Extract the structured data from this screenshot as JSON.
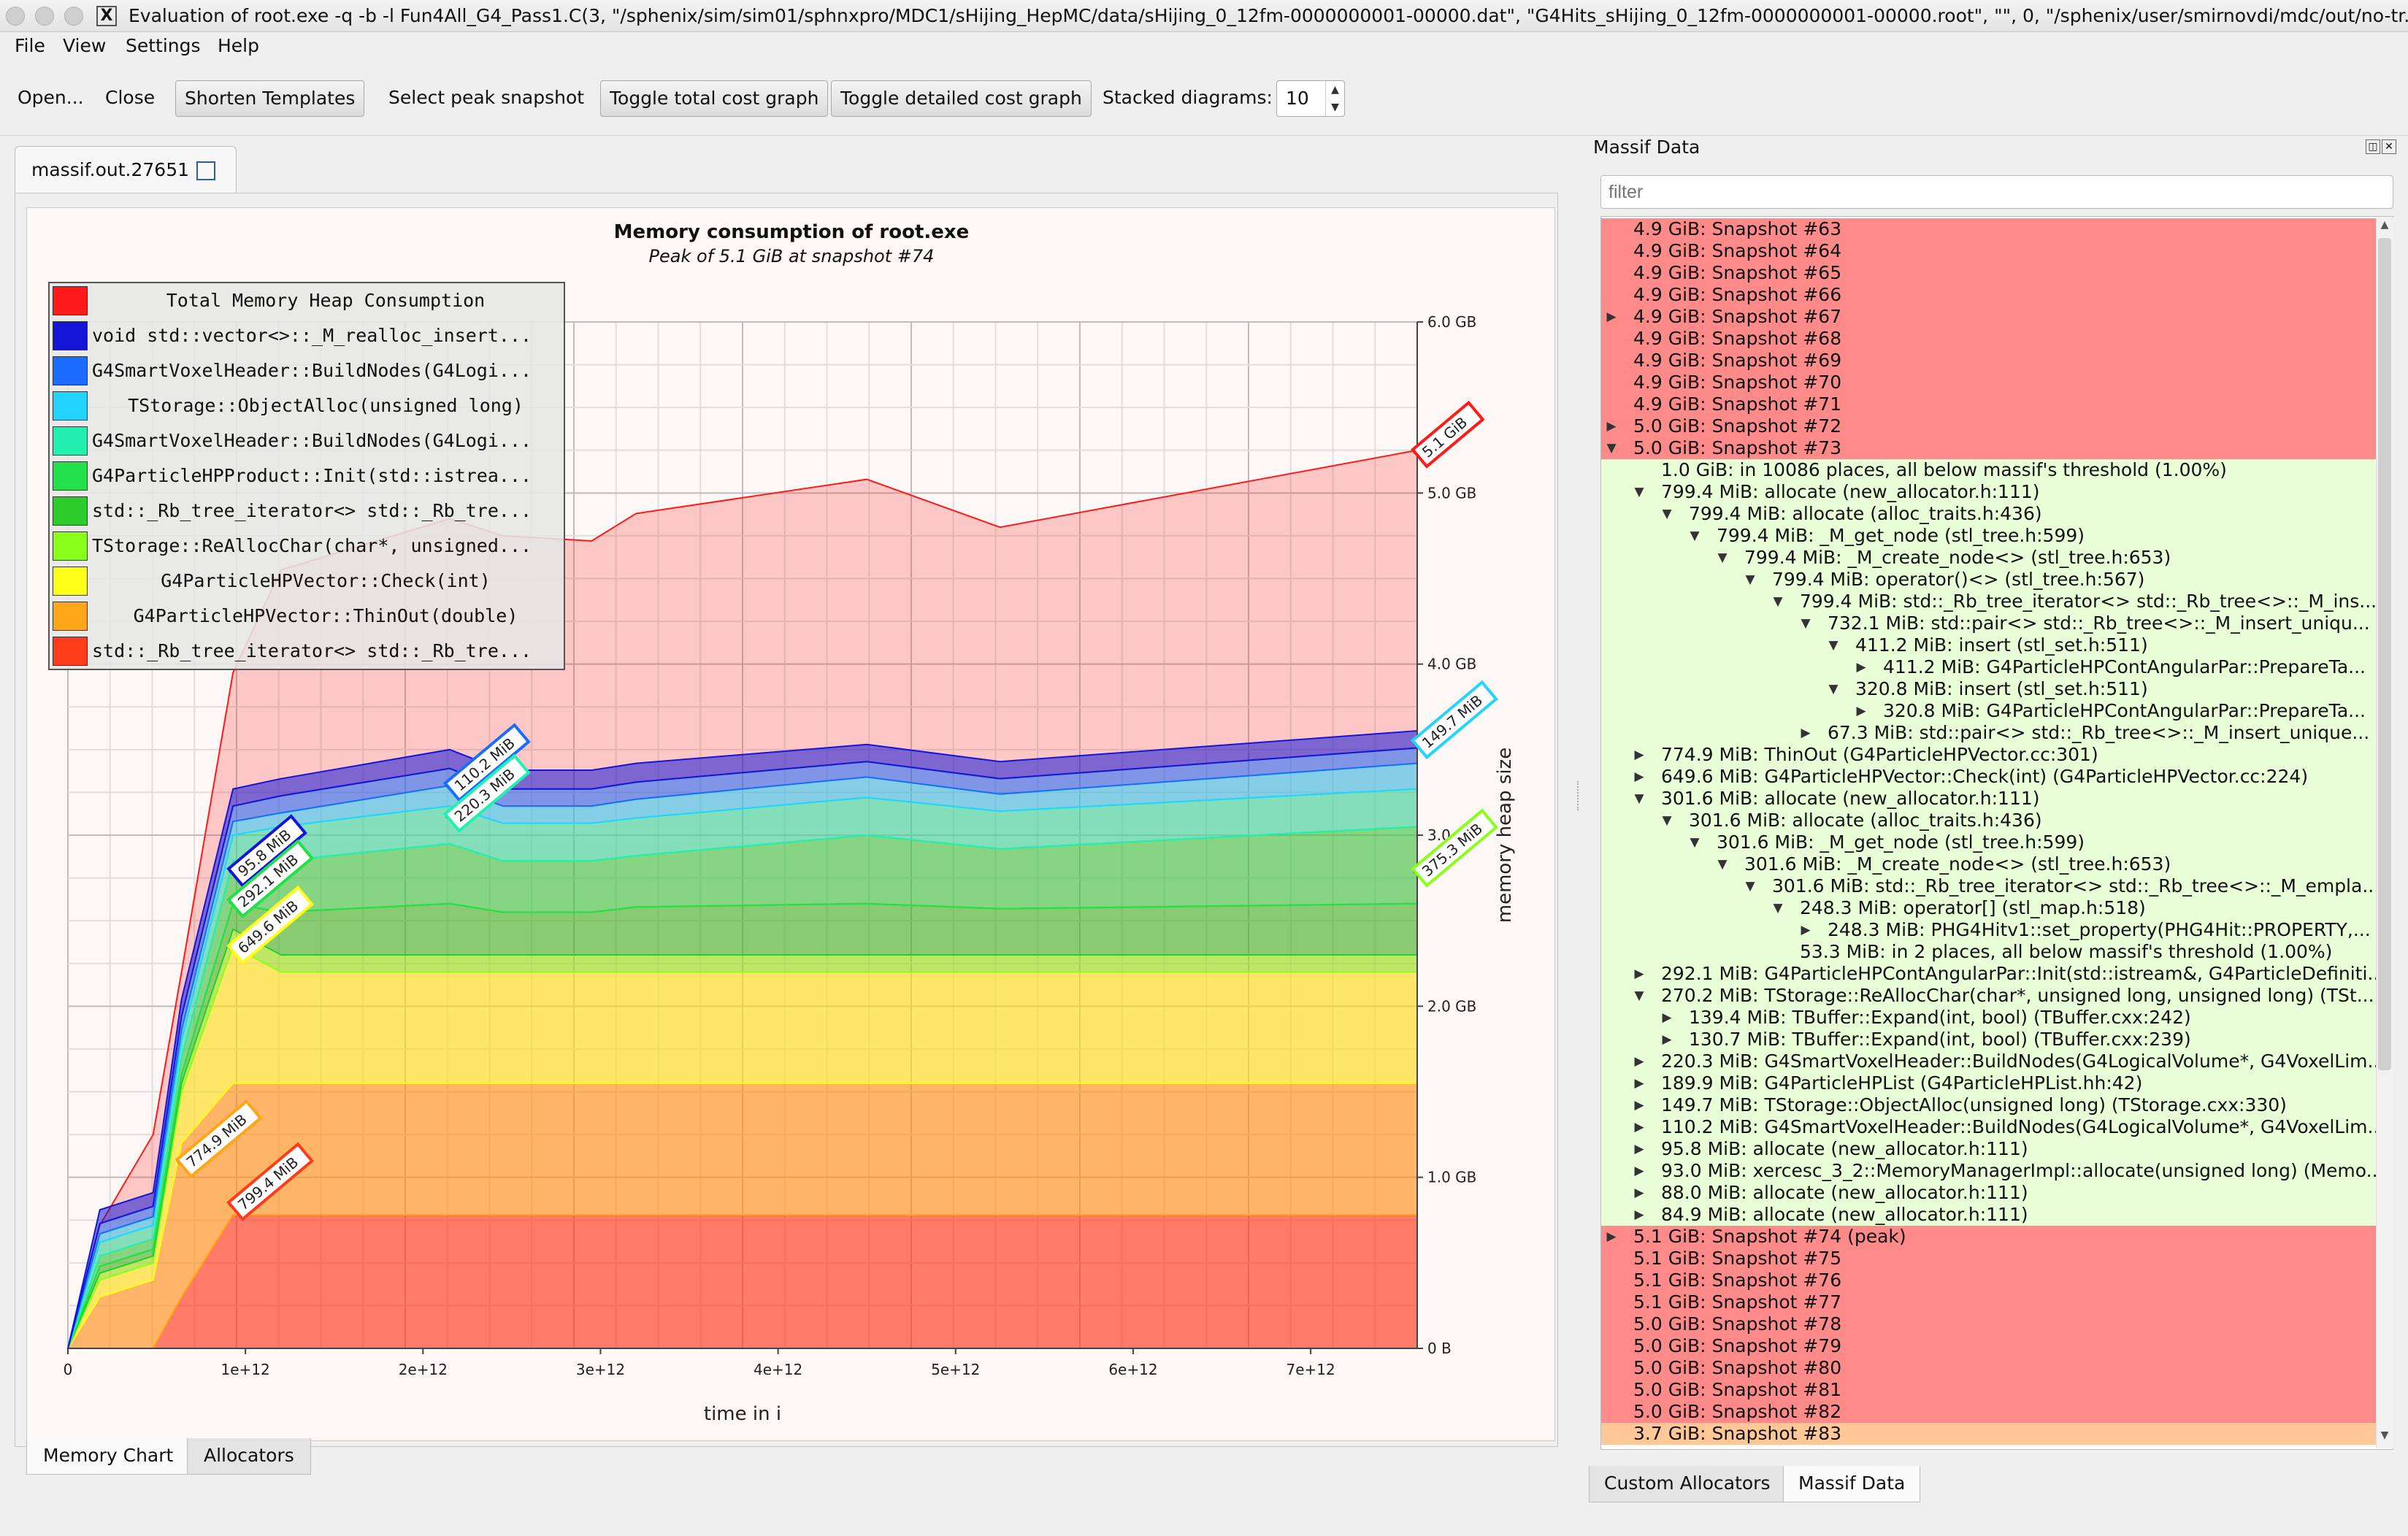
{
  "window": {
    "title": "Evaluation of root.exe -q -b -l Fun4All_G4_Pass1.C(3, \"/sphenix/sim/sim01/sphnxpro/MDC1/sHijing_HepMC/data/sHijing_0_12fm-0000000001-00000.dat\", \"G4Hits_sHijing_0_12fm-0000000001-00000.root\", \"\", 0, \"/sphenix/user/smirnovdi/mdc/out/no-tr...",
    "app_icon": "X"
  },
  "menu": [
    "File",
    "View",
    "Settings",
    "Help"
  ],
  "toolbar": {
    "open": "Open...",
    "close": "Close",
    "shorten": "Shorten Templates",
    "peak": "Select peak snapshot",
    "toggle_total": "Toggle total cost graph",
    "toggle_detailed": "Toggle detailed cost graph",
    "stacked_label": "Stacked diagrams:",
    "stacked_value": "10"
  },
  "file_tab": "massif.out.27651",
  "bottom_tabs": [
    "Memory Chart",
    "Allocators"
  ],
  "chart_data": {
    "type": "area",
    "title": "Memory consumption of root.exe",
    "subtitle": "Peak of 5.1 GiB at snapshot #74",
    "xlabel": "time in i",
    "ylabel": "memory heap size",
    "x_ticks": [
      "0",
      "1e+12",
      "2e+12",
      "3e+12",
      "4e+12",
      "5e+12",
      "6e+12",
      "7e+12"
    ],
    "x_tick_values": [
      0,
      1000000000000.0,
      2000000000000.0,
      3000000000000.0,
      4000000000000.0,
      5000000000000.0,
      6000000000000.0,
      7000000000000.0
    ],
    "y_ticks": [
      "0 B",
      "1.0 GB",
      "2.0 GB",
      "3.0 GB",
      "4.0 GB",
      "5.0 GB",
      "6.0 GB"
    ],
    "y_tick_values": [
      0,
      1,
      2,
      3,
      4,
      5,
      6
    ],
    "xlim": [
      0,
      7600000000000.0
    ],
    "ylim": [
      0,
      6
    ],
    "grid": true,
    "legend_position": "top-left",
    "x": [
      0,
      180000000000.0,
      480000000000.0,
      640000000000.0,
      930000000000.0,
      1200000000000.0,
      2150000000000.0,
      2450000000000.0,
      2950000000000.0,
      3200000000000.0,
      4500000000000.0,
      5250000000000.0,
      7600000000000.0
    ],
    "series": [
      {
        "name": "Total Memory Heap Consumption",
        "color": "#ff1a1a",
        "values": [
          0,
          0.72,
          1.25,
          2.2,
          3.95,
          4.55,
          4.85,
          4.75,
          4.72,
          4.88,
          5.08,
          4.8,
          5.25
        ]
      },
      {
        "name": "void std::vector<>::_M_realloc_insert...",
        "color": "#1515d8",
        "values": [
          0,
          0.08,
          0.08,
          0.1,
          0.1,
          0.1,
          0.11,
          0.11,
          0.11,
          0.11,
          0.1,
          0.1,
          0.1
        ]
      },
      {
        "name": "G4SmartVoxelHeader::BuildNodes(G4Logi...",
        "color": "#1a6cff",
        "values": [
          0,
          0.06,
          0.06,
          0.08,
          0.09,
          0.1,
          0.1,
          0.1,
          0.1,
          0.1,
          0.09,
          0.09,
          0.09
        ]
      },
      {
        "name": "TStorage::ObjectAlloc(unsigned long)",
        "color": "#22d4ff",
        "values": [
          0,
          0.05,
          0.05,
          0.06,
          0.08,
          0.08,
          0.12,
          0.1,
          0.1,
          0.11,
          0.12,
          0.1,
          0.15
        ]
      },
      {
        "name": "G4SmartVoxelHeader::BuildNodes(G4Logi...",
        "color": "#22f0b0",
        "values": [
          0,
          0.08,
          0.08,
          0.1,
          0.15,
          0.2,
          0.22,
          0.22,
          0.22,
          0.22,
          0.22,
          0.22,
          0.22
        ]
      },
      {
        "name": "G4ParticleHPProduct::Init(std::istrea...",
        "color": "#22e04a",
        "values": [
          0,
          0.06,
          0.06,
          0.1,
          0.25,
          0.3,
          0.35,
          0.3,
          0.3,
          0.3,
          0.4,
          0.35,
          0.45
        ]
      },
      {
        "name": "std::_Rb_tree_iterator<> std::_Rb_tre...",
        "color": "#2acd2a",
        "values": [
          0,
          0.04,
          0.04,
          0.05,
          0.15,
          0.25,
          0.3,
          0.25,
          0.25,
          0.28,
          0.3,
          0.27,
          0.3
        ]
      },
      {
        "name": "TStorage::ReAllocChar(char*, unsigned...",
        "color": "#8aff1a",
        "values": [
          0,
          0.04,
          0.04,
          0.05,
          0.1,
          0.1,
          0.1,
          0.1,
          0.1,
          0.1,
          0.1,
          0.1,
          0.1
        ]
      },
      {
        "name": "G4ParticleHPVector::Check(int)",
        "color": "#ffff1a",
        "values": [
          0,
          0.1,
          0.1,
          0.3,
          0.8,
          0.65,
          0.65,
          0.65,
          0.65,
          0.65,
          0.65,
          0.65,
          0.65
        ]
      },
      {
        "name": "G4ParticleHPVector::ThinOut(double)",
        "color": "#ffa51a",
        "values": [
          0,
          0.3,
          0.4,
          0.9,
          0.77,
          0.77,
          0.77,
          0.77,
          0.77,
          0.77,
          0.77,
          0.77,
          0.77
        ]
      },
      {
        "name": "std::_Rb_tree_iterator<> std::_Rb_tre...",
        "color": "#ff3c1a",
        "values": [
          0,
          0,
          0,
          0.3,
          0.78,
          0.78,
          0.78,
          0.78,
          0.78,
          0.78,
          0.78,
          0.78,
          0.78
        ]
      }
    ],
    "annotations": [
      {
        "text": "5.1 GiB",
        "x": 7600000000000.0,
        "y": 5.25,
        "color": "#ff1a1a"
      },
      {
        "text": "149.7 MiB",
        "x": 7600000000000.0,
        "y": 3.55,
        "color": "#22d4ff"
      },
      {
        "text": "375.3 MiB",
        "x": 7600000000000.0,
        "y": 2.8,
        "color": "#8aff1a"
      },
      {
        "text": "110.2 MiB",
        "x": 2150000000000.0,
        "y": 3.3,
        "color": "#1a6cff"
      },
      {
        "text": "220.3 MiB",
        "x": 2150000000000.0,
        "y": 3.12,
        "color": "#22f0b0"
      },
      {
        "text": "95.8 MiB",
        "x": 930000000000.0,
        "y": 2.8,
        "color": "#1515d8"
      },
      {
        "text": "292.1 MiB",
        "x": 930000000000.0,
        "y": 2.62,
        "color": "#22e04a"
      },
      {
        "text": "649.6 MiB",
        "x": 930000000000.0,
        "y": 2.35,
        "color": "#ffff1a"
      },
      {
        "text": "774.9 MiB",
        "x": 640000000000.0,
        "y": 1.1,
        "color": "#ffa51a"
      },
      {
        "text": "799.4 MiB",
        "x": 930000000000.0,
        "y": 0.85,
        "color": "#ff3c1a"
      }
    ]
  },
  "right_panel": {
    "title": "Massif Data",
    "filter_placeholder": "filter",
    "tabs": [
      "Custom Allocators",
      "Massif Data"
    ],
    "rows": [
      {
        "text": "4.9 GiB: Snapshot #63",
        "depth": 0,
        "arrow": "",
        "bg": "#ff8a8a"
      },
      {
        "text": "4.9 GiB: Snapshot #64",
        "depth": 0,
        "arrow": "",
        "bg": "#ff8a8a"
      },
      {
        "text": "4.9 GiB: Snapshot #65",
        "depth": 0,
        "arrow": "",
        "bg": "#ff8a8a"
      },
      {
        "text": "4.9 GiB: Snapshot #66",
        "depth": 0,
        "arrow": "",
        "bg": "#ff8a8a"
      },
      {
        "text": "4.9 GiB: Snapshot #67",
        "depth": 0,
        "arrow": "▶",
        "bg": "#ff8a8a"
      },
      {
        "text": "4.9 GiB: Snapshot #68",
        "depth": 0,
        "arrow": "",
        "bg": "#ff8a8a"
      },
      {
        "text": "4.9 GiB: Snapshot #69",
        "depth": 0,
        "arrow": "",
        "bg": "#ff8a8a"
      },
      {
        "text": "4.9 GiB: Snapshot #70",
        "depth": 0,
        "arrow": "",
        "bg": "#ff8a8a"
      },
      {
        "text": "4.9 GiB: Snapshot #71",
        "depth": 0,
        "arrow": "",
        "bg": "#ff8a8a"
      },
      {
        "text": "5.0 GiB: Snapshot #72",
        "depth": 0,
        "arrow": "▶",
        "bg": "#ff8a8a"
      },
      {
        "text": "5.0 GiB: Snapshot #73",
        "depth": 0,
        "arrow": "▼",
        "bg": "#ff8a8a"
      },
      {
        "text": "1.0 GiB: in 10086 places, all below massif's threshold (1.00%)",
        "depth": 1,
        "arrow": "",
        "bg": "#e8ffd8"
      },
      {
        "text": "799.4 MiB: allocate (new_allocator.h:111)",
        "depth": 1,
        "arrow": "▼",
        "bg": "#e8ffd8"
      },
      {
        "text": "799.4 MiB: allocate (alloc_traits.h:436)",
        "depth": 2,
        "arrow": "▼",
        "bg": "#e8ffd8"
      },
      {
        "text": "799.4 MiB: _M_get_node (stl_tree.h:599)",
        "depth": 3,
        "arrow": "▼",
        "bg": "#e8ffd8"
      },
      {
        "text": "799.4 MiB: _M_create_node<> (stl_tree.h:653)",
        "depth": 4,
        "arrow": "▼",
        "bg": "#e8ffd8"
      },
      {
        "text": "799.4 MiB: operator()<> (stl_tree.h:567)",
        "depth": 5,
        "arrow": "▼",
        "bg": "#e8ffd8"
      },
      {
        "text": "799.4 MiB: std::_Rb_tree_iterator<> std::_Rb_tree<>::_M_ins...",
        "depth": 6,
        "arrow": "▼",
        "bg": "#e8ffd8"
      },
      {
        "text": "732.1 MiB: std::pair<> std::_Rb_tree<>::_M_insert_uniqu...",
        "depth": 7,
        "arrow": "▼",
        "bg": "#e8ffd8"
      },
      {
        "text": "411.2 MiB: insert (stl_set.h:511)",
        "depth": 8,
        "arrow": "▼",
        "bg": "#e8ffd8"
      },
      {
        "text": "411.2 MiB: G4ParticleHPContAngularPar::PrepareTa...",
        "depth": 9,
        "arrow": "▶",
        "bg": "#e8ffd8"
      },
      {
        "text": "320.8 MiB: insert (stl_set.h:511)",
        "depth": 8,
        "arrow": "▼",
        "bg": "#e8ffd8"
      },
      {
        "text": "320.8 MiB: G4ParticleHPContAngularPar::PrepareTa...",
        "depth": 9,
        "arrow": "▶",
        "bg": "#e8ffd8"
      },
      {
        "text": "67.3 MiB: std::pair<> std::_Rb_tree<>::_M_insert_unique...",
        "depth": 7,
        "arrow": "▶",
        "bg": "#e8ffd8"
      },
      {
        "text": "774.9 MiB: ThinOut (G4ParticleHPVector.cc:301)",
        "depth": 1,
        "arrow": "▶",
        "bg": "#e8ffd8"
      },
      {
        "text": "649.6 MiB: G4ParticleHPVector::Check(int) (G4ParticleHPVector.cc:224)",
        "depth": 1,
        "arrow": "▶",
        "bg": "#e8ffd8"
      },
      {
        "text": "301.6 MiB: allocate (new_allocator.h:111)",
        "depth": 1,
        "arrow": "▼",
        "bg": "#e8ffd8"
      },
      {
        "text": "301.6 MiB: allocate (alloc_traits.h:436)",
        "depth": 2,
        "arrow": "▼",
        "bg": "#e8ffd8"
      },
      {
        "text": "301.6 MiB: _M_get_node (stl_tree.h:599)",
        "depth": 3,
        "arrow": "▼",
        "bg": "#e8ffd8"
      },
      {
        "text": "301.6 MiB: _M_create_node<> (stl_tree.h:653)",
        "depth": 4,
        "arrow": "▼",
        "bg": "#e8ffd8"
      },
      {
        "text": "301.6 MiB: std::_Rb_tree_iterator<> std::_Rb_tree<>::_M_empla...",
        "depth": 5,
        "arrow": "▼",
        "bg": "#e8ffd8"
      },
      {
        "text": "248.3 MiB: operator[] (stl_map.h:518)",
        "depth": 6,
        "arrow": "▼",
        "bg": "#e8ffd8"
      },
      {
        "text": "248.3 MiB: PHG4Hitv1::set_property(PHG4Hit::PROPERTY,...",
        "depth": 7,
        "arrow": "▶",
        "bg": "#e8ffd8"
      },
      {
        "text": "53.3 MiB: in 2 places, all below massif's threshold (1.00%)",
        "depth": 6,
        "arrow": "",
        "bg": "#e8ffd8"
      },
      {
        "text": "292.1 MiB: G4ParticleHPContAngularPar::Init(std::istream&, G4ParticleDefiniti...",
        "depth": 1,
        "arrow": "▶",
        "bg": "#e8ffd8"
      },
      {
        "text": "270.2 MiB: TStorage::ReAllocChar(char*, unsigned long, unsigned long) (TSt...",
        "depth": 1,
        "arrow": "▼",
        "bg": "#e8ffd8"
      },
      {
        "text": "139.4 MiB: TBuffer::Expand(int, bool) (TBuffer.cxx:242)",
        "depth": 2,
        "arrow": "▶",
        "bg": "#e8ffd8"
      },
      {
        "text": "130.7 MiB: TBuffer::Expand(int, bool) (TBuffer.cxx:239)",
        "depth": 2,
        "arrow": "▶",
        "bg": "#e8ffd8"
      },
      {
        "text": "220.3 MiB: G4SmartVoxelHeader::BuildNodes(G4LogicalVolume*, G4VoxelLim...",
        "depth": 1,
        "arrow": "▶",
        "bg": "#e8ffd8"
      },
      {
        "text": "189.9 MiB: G4ParticleHPList (G4ParticleHPList.hh:42)",
        "depth": 1,
        "arrow": "▶",
        "bg": "#e8ffd8"
      },
      {
        "text": "149.7 MiB: TStorage::ObjectAlloc(unsigned long) (TStorage.cxx:330)",
        "depth": 1,
        "arrow": "▶",
        "bg": "#e8ffd8"
      },
      {
        "text": "110.2 MiB: G4SmartVoxelHeader::BuildNodes(G4LogicalVolume*, G4VoxelLim...",
        "depth": 1,
        "arrow": "▶",
        "bg": "#e8ffd8"
      },
      {
        "text": "95.8 MiB: allocate (new_allocator.h:111)",
        "depth": 1,
        "arrow": "▶",
        "bg": "#e8ffd8"
      },
      {
        "text": "93.0 MiB: xercesc_3_2::MemoryManagerImpl::allocate(unsigned long) (Memo...",
        "depth": 1,
        "arrow": "▶",
        "bg": "#e8ffd8"
      },
      {
        "text": "88.0 MiB: allocate (new_allocator.h:111)",
        "depth": 1,
        "arrow": "▶",
        "bg": "#e8ffd8"
      },
      {
        "text": "84.9 MiB: allocate (new_allocator.h:111)",
        "depth": 1,
        "arrow": "▶",
        "bg": "#e8ffd8"
      },
      {
        "text": "5.1 GiB: Snapshot #74 (peak)",
        "depth": 0,
        "arrow": "▶",
        "bg": "#ff8a8a"
      },
      {
        "text": "5.1 GiB: Snapshot #75",
        "depth": 0,
        "arrow": "",
        "bg": "#ff8a8a"
      },
      {
        "text": "5.1 GiB: Snapshot #76",
        "depth": 0,
        "arrow": "",
        "bg": "#ff8a8a"
      },
      {
        "text": "5.1 GiB: Snapshot #77",
        "depth": 0,
        "arrow": "",
        "bg": "#ff8a8a"
      },
      {
        "text": "5.0 GiB: Snapshot #78",
        "depth": 0,
        "arrow": "",
        "bg": "#ff8a8a"
      },
      {
        "text": "5.0 GiB: Snapshot #79",
        "depth": 0,
        "arrow": "",
        "bg": "#ff8a8a"
      },
      {
        "text": "5.0 GiB: Snapshot #80",
        "depth": 0,
        "arrow": "",
        "bg": "#ff8a8a"
      },
      {
        "text": "5.0 GiB: Snapshot #81",
        "depth": 0,
        "arrow": "",
        "bg": "#ff8a8a"
      },
      {
        "text": "5.0 GiB: Snapshot #82",
        "depth": 0,
        "arrow": "",
        "bg": "#ff8a8a"
      },
      {
        "text": "3.7 GiB: Snapshot #83",
        "depth": 0,
        "arrow": "",
        "bg": "#ffc896"
      }
    ]
  }
}
